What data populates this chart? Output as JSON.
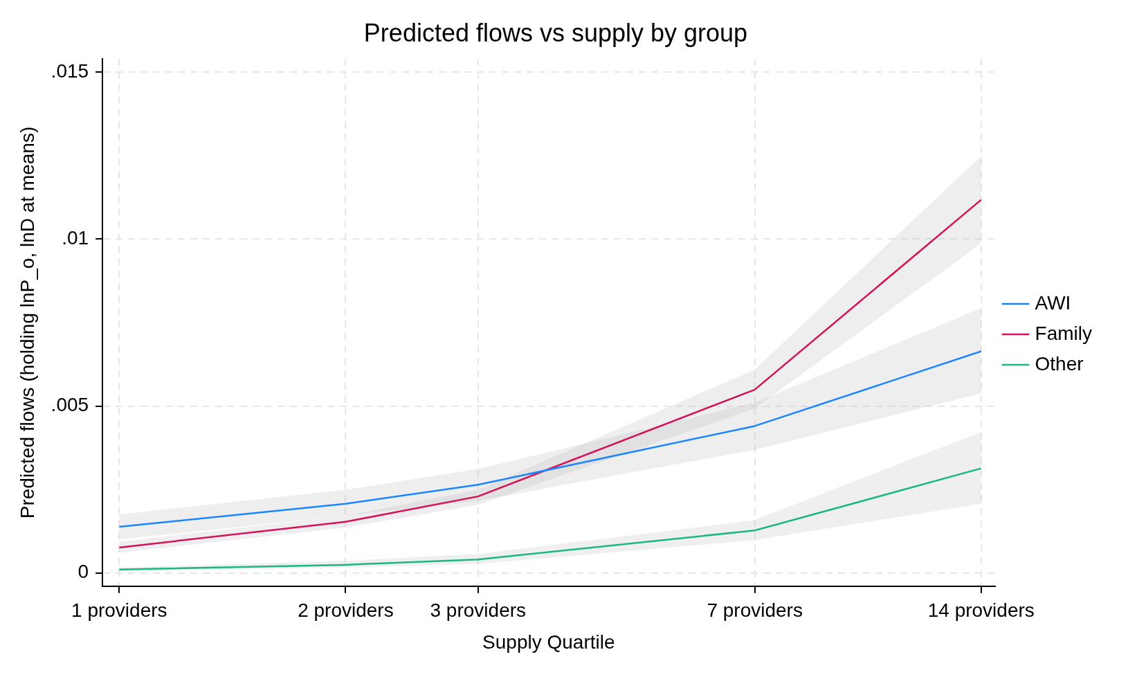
{
  "chart_data": {
    "type": "line",
    "title": "Predicted flows vs supply by group",
    "xlabel": "Supply Quartile",
    "ylabel": "Predicted flows (holding lnP_o, lnD at means)",
    "x": [
      1,
      2,
      3,
      7,
      14
    ],
    "log": "x",
    "xlim": [
      0.95,
      14.6
    ],
    "xticks": [
      {
        "value": 1,
        "label": "1 providers"
      },
      {
        "value": 2,
        "label": "2 providers"
      },
      {
        "value": 3,
        "label": "3 providers"
      },
      {
        "value": 7,
        "label": "7 providers"
      },
      {
        "value": 14,
        "label": "14 providers"
      }
    ],
    "ylim": [
      -0.0004,
      0.0154
    ],
    "yticks": [
      {
        "value": 0,
        "label": "0"
      },
      {
        "value": 0.005,
        "label": ".005"
      },
      {
        "value": 0.01,
        "label": ".01"
      },
      {
        "value": 0.015,
        "label": ".015"
      }
    ],
    "grid": true,
    "legend": "right",
    "line_style": "solid",
    "marker": "none",
    "series": [
      {
        "name": "AWI",
        "color": "#1a85ff",
        "values": [
          0.00138,
          0.00207,
          0.00264,
          0.0044,
          0.00664
        ],
        "lower": [
          0.001,
          0.00171,
          0.00216,
          0.00369,
          0.00538
        ],
        "upper": [
          0.00175,
          0.00249,
          0.00311,
          0.0051,
          0.00793
        ]
      },
      {
        "name": "Family",
        "color": "#d41159",
        "values": [
          0.00076,
          0.00153,
          0.00229,
          0.00549,
          0.01118
        ],
        "lower": [
          0.0006,
          0.00136,
          0.00204,
          0.00493,
          0.00987
        ],
        "upper": [
          0.00093,
          0.00171,
          0.00249,
          0.00609,
          0.01249
        ]
      },
      {
        "name": "Other",
        "color": "#1ab77e",
        "values": [
          0.0001,
          0.00024,
          0.0004,
          0.00127,
          0.00313
        ],
        "lower": [
          4e-05,
          0.00016,
          0.00027,
          0.00098,
          0.00207
        ],
        "upper": [
          0.00016,
          0.00036,
          0.00056,
          0.00158,
          0.00422
        ]
      }
    ]
  }
}
